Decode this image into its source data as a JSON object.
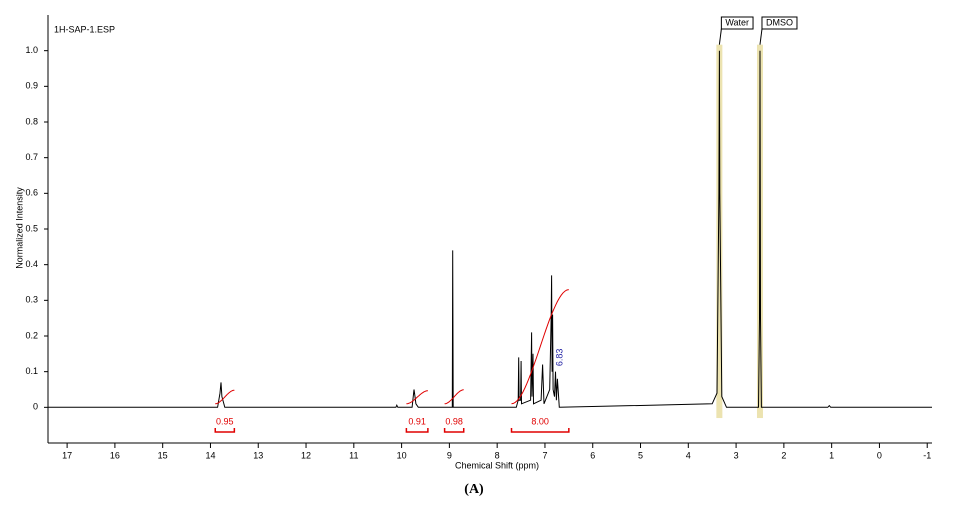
{
  "chart_data": {
    "type": "line",
    "file_label": "1H-SAP-1.ESP",
    "xlabel": "Chemical Shift (ppm)",
    "ylabel": "Normalized Intensity",
    "caption": "(A)",
    "color": "#000000",
    "xlim": [
      17.4,
      -1.1
    ],
    "ylim": [
      -0.1,
      1.1
    ],
    "xticks": [
      17,
      16,
      15,
      14,
      13,
      12,
      11,
      10,
      9,
      8,
      7,
      6,
      5,
      4,
      3,
      2,
      1,
      0,
      -1
    ],
    "yticks": [
      0,
      0.1,
      0.2,
      0.3,
      0.4,
      0.5,
      0.6,
      0.7,
      0.8,
      0.9,
      {
        "value": 1,
        "label": "1.0"
      }
    ],
    "x": [
      17.4,
      13.85,
      13.8,
      13.78,
      13.76,
      13.7,
      10.12,
      10.1,
      10.08,
      9.78,
      9.74,
      9.72,
      9.7,
      9.65,
      8.94,
      8.93,
      8.92,
      7.6,
      7.56,
      7.55,
      7.54,
      7.51,
      7.5,
      7.49,
      7.3,
      7.28,
      7.27,
      7.25,
      7.24,
      7.08,
      7.05,
      7.02,
      6.9,
      6.87,
      6.86,
      6.85,
      6.84,
      6.83,
      6.8,
      6.78,
      6.76,
      6.74,
      6.7,
      3.5,
      3.4,
      3.36,
      3.35,
      3.34,
      3.3,
      3.2,
      2.53,
      2.51,
      2.5,
      2.49,
      2.47,
      1.08,
      1.05,
      1.02,
      -1.1
    ],
    "values": [
      0,
      0,
      0.04,
      0.07,
      0.03,
      0,
      0,
      0.006,
      0,
      0,
      0.05,
      0.03,
      0.01,
      0,
      0,
      0.44,
      0,
      0,
      0.02,
      0.14,
      0.02,
      0.02,
      0.13,
      0.01,
      0.02,
      0.21,
      0.03,
      0.15,
      0.01,
      0.02,
      0.12,
      0.01,
      0.05,
      0.26,
      0.37,
      0.1,
      0.26,
      0.05,
      0.03,
      0.1,
      0.02,
      0.08,
      0,
      0.01,
      0.04,
      0.6,
      1.0,
      0.6,
      0.03,
      0,
      0,
      0.25,
      1.0,
      0.25,
      0,
      0,
      0.005,
      0,
      0
    ],
    "integrals": {
      "color": "#e00000",
      "from": [
        13.9,
        9.9,
        9.1,
        7.7
      ],
      "to": [
        13.5,
        9.45,
        8.7,
        6.5
      ],
      "values": [
        0.95,
        0.91,
        0.98,
        8.0
      ],
      "value_labels": [
        "0.95",
        "0.91",
        "0.98",
        "8.00"
      ]
    },
    "annotations": [
      {
        "x": 3.35,
        "text": "Water",
        "highlight": true
      },
      {
        "x": 2.5,
        "text": "DMSO",
        "highlight": true
      }
    ],
    "peak_labels": [
      {
        "x": 6.83,
        "text": "6.83",
        "color": "#1a1aa0"
      }
    ]
  }
}
